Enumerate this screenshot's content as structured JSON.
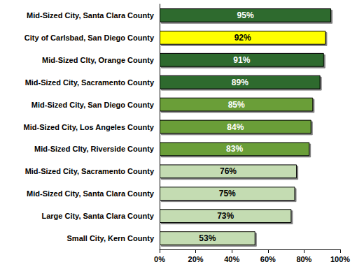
{
  "chart_data": {
    "type": "bar",
    "orientation": "horizontal",
    "categories": [
      "Mid-Sized City, Santa Clara County",
      "City of Carlsbad, San Diego County",
      "Mid-Sized Clty, Orange County",
      "Mid-Sized City, Sacramento County",
      "Mid-Sized City, San Diego County",
      "Mid-Sized City, Los Angeles County",
      "Mid-Sized Clty, Riverside County",
      "Mid-Sized City, Sacramento County",
      "Mid-Sized City, Santa Clara County",
      "Large City, Santa Clara County",
      "Small City, Kern County"
    ],
    "values": [
      95,
      92,
      91,
      89,
      85,
      84,
      83,
      76,
      75,
      73,
      53
    ],
    "value_labels": [
      "95%",
      "92%",
      "91%",
      "89%",
      "85%",
      "84%",
      "83%",
      "76%",
      "75%",
      "73%",
      "53%"
    ],
    "colors": [
      "#2e6b2e",
      "#ffff00",
      "#2e6b2e",
      "#2e6b2e",
      "#6a9e38",
      "#6a9e38",
      "#6a9e38",
      "#c4dcb2",
      "#c4dcb2",
      "#c4dcb2",
      "#c4dcb2"
    ],
    "data_labels": true,
    "grid": false,
    "xlim": [
      0,
      100
    ],
    "xticks": [
      {
        "value": 0,
        "label": "0%"
      },
      {
        "value": 20,
        "label": "20%"
      },
      {
        "value": 40,
        "label": "40%"
      },
      {
        "value": 60,
        "label": "60%"
      },
      {
        "value": 80,
        "label": "80%"
      },
      {
        "value": 100,
        "label": "100%"
      }
    ]
  }
}
